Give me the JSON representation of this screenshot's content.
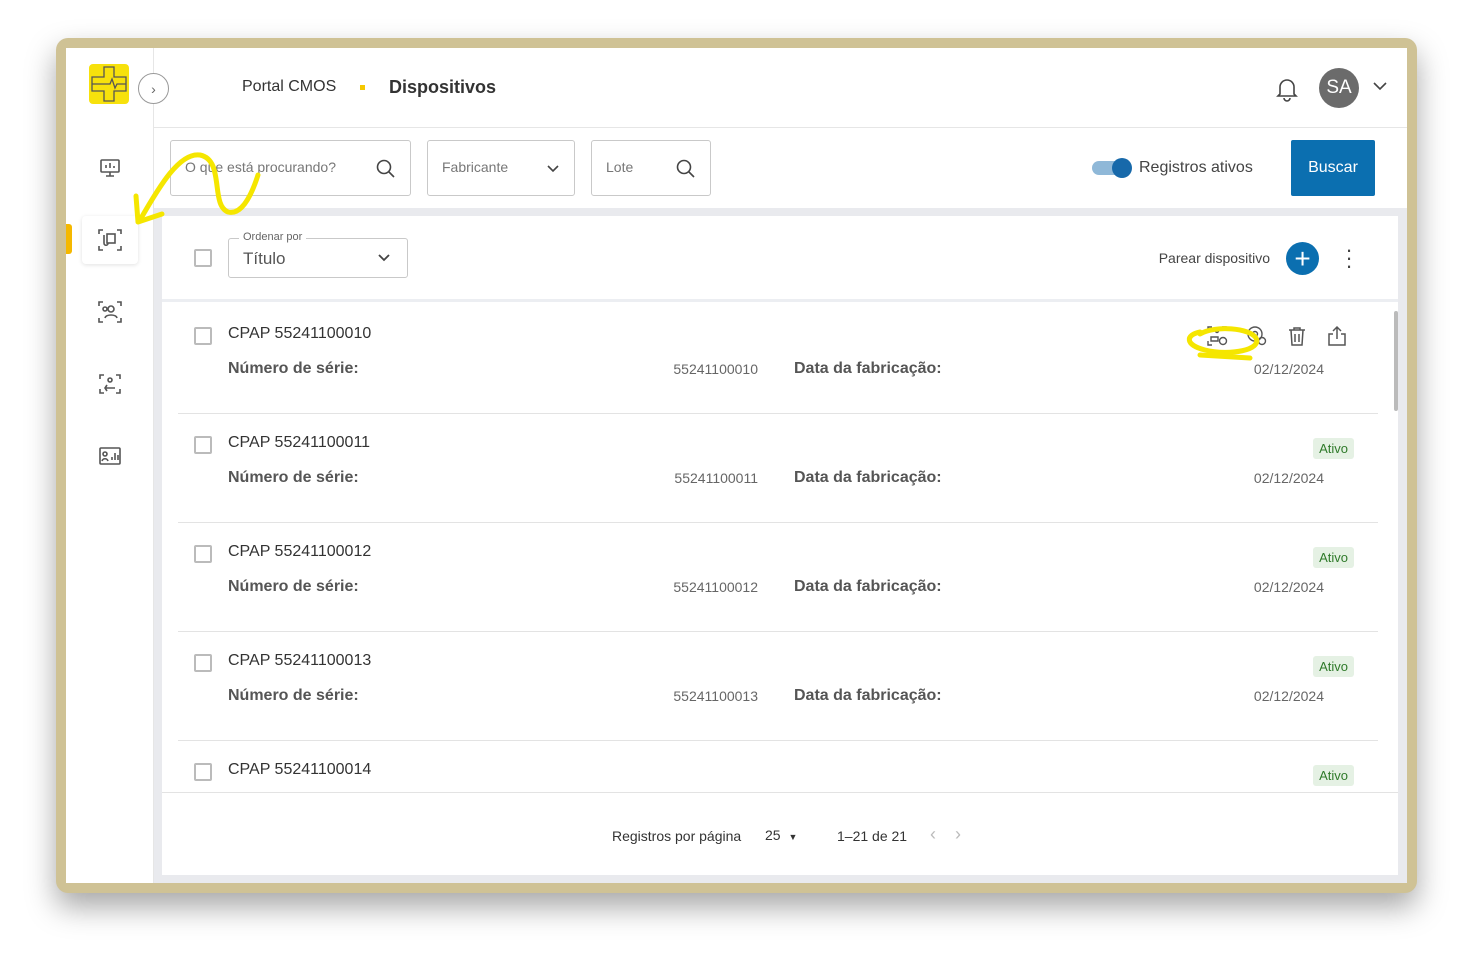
{
  "header": {
    "app": "Portal CMOS",
    "page": "Dispositivos",
    "avatar": "SA"
  },
  "filters": {
    "search_placeholder": "O que está procurando?",
    "manufacturer": "Fabricante",
    "batch": "Lote",
    "active_toggle": "Registros ativos",
    "active_on": true,
    "search_button": "Buscar"
  },
  "list_header": {
    "sort_label": "Ordenar por",
    "sort_value": "Título",
    "pair_label": "Parear dispositivo"
  },
  "labels": {
    "serial": "Número de série:",
    "date": "Data da fabricação:"
  },
  "rows": [
    {
      "title": "CPAP 55241100010",
      "serial": "55241100010",
      "date": "02/12/2024",
      "status": ""
    },
    {
      "title": "CPAP 55241100011",
      "serial": "55241100011",
      "date": "02/12/2024",
      "status": "Ativo"
    },
    {
      "title": "CPAP 55241100012",
      "serial": "55241100012",
      "date": "02/12/2024",
      "status": "Ativo"
    },
    {
      "title": "CPAP 55241100013",
      "serial": "55241100013",
      "date": "02/12/2024",
      "status": "Ativo"
    },
    {
      "title": "CPAP 55241100014",
      "serial": "",
      "date": "",
      "status": "Ativo"
    }
  ],
  "pagination": {
    "per_page_label": "Registros por página",
    "per_page": "25",
    "range": "1–21 de 21"
  },
  "colors": {
    "accent": "#0b6fb0",
    "logo": "#f7e10c",
    "annotation": "#f5e600",
    "active_badge": "#e5f1e4"
  }
}
